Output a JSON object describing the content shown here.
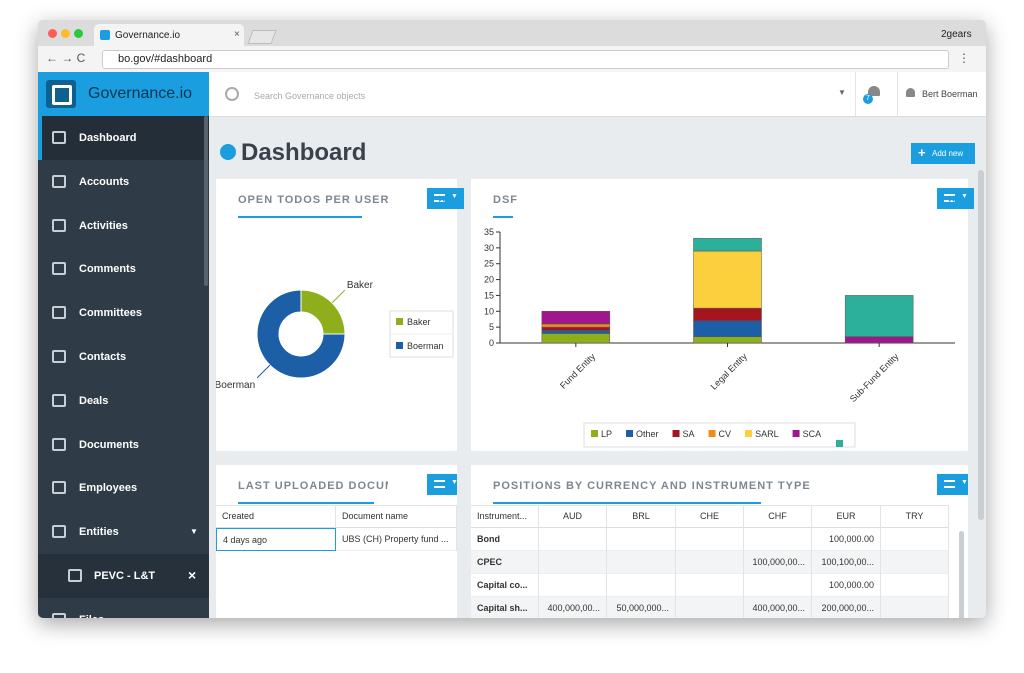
{
  "browser": {
    "tab_title": "Governance.io",
    "url": "bo.gov/#dashboard",
    "profile": "2gears"
  },
  "app": {
    "brand": "Governance.io",
    "search_placeholder": "Search Governance objects",
    "notifications": "7",
    "user": "Bert Boerman"
  },
  "sidebar": {
    "items": [
      "Dashboard",
      "Accounts",
      "Activities",
      "Comments",
      "Committees",
      "Contacts",
      "Deals",
      "Documents",
      "Employees",
      "Entities",
      "PEVC - L&T",
      "Files"
    ]
  },
  "page": {
    "title": "Dashboard",
    "add_button": "Add new"
  },
  "chart_data": [
    {
      "type": "donut",
      "title": "OPEN TODOS PER USER",
      "categories": [
        "Baker",
        "Boerman"
      ],
      "values": [
        25,
        75
      ],
      "colors": [
        "#8fae1b",
        "#1c5fa6"
      ],
      "legend": "right"
    },
    {
      "type": "stacked-bar",
      "title": "DSF",
      "categories": [
        "Fund Entity",
        "Legal Entity",
        "Sub-Fund Entity"
      ],
      "series": [
        {
          "name": "LP",
          "color": "#8fae1b",
          "values": [
            3,
            2,
            null
          ]
        },
        {
          "name": "Other",
          "color": "#1c5fa6",
          "values": [
            1,
            5,
            null
          ]
        },
        {
          "name": "SA",
          "color": "#a3161f",
          "values": [
            1,
            4,
            null
          ]
        },
        {
          "name": "CV",
          "color": "#f28b1d",
          "values": [
            1,
            null,
            null
          ]
        },
        {
          "name": "SARL",
          "color": "#fcd03d",
          "values": [
            null,
            18,
            null
          ]
        },
        {
          "name": "SCA",
          "color": "#a0178b",
          "values": [
            4,
            null,
            2
          ]
        },
        {
          "color": "#2cb09b",
          "values": [
            null,
            4,
            13
          ]
        }
      ],
      "ylim": [
        0,
        35
      ],
      "yticks": [
        0,
        5,
        10,
        15,
        20,
        25,
        30,
        35
      ],
      "grid": false,
      "legend": "bottom"
    }
  ],
  "documents_widget": {
    "title": "LAST UPLOADED DOCUMENTS",
    "columns": [
      "Created",
      "Document name"
    ],
    "rows": [
      [
        "4 days ago",
        "UBS (CH) Property fund ..."
      ]
    ]
  },
  "positions_widget": {
    "title": "POSITIONS BY CURRENCY AND INSTRUMENT TYPE",
    "columns": [
      "Instrument...",
      "AUD",
      "BRL",
      "CHE",
      "CHF",
      "EUR",
      "TRY"
    ],
    "rows": [
      [
        "Bond",
        null,
        null,
        null,
        null,
        "100,000.00",
        null
      ],
      [
        "CPEC",
        null,
        null,
        null,
        "100,000,00...",
        "100,100,00...",
        null
      ],
      [
        "Capital co...",
        null,
        null,
        null,
        null,
        "100,000.00",
        null
      ],
      [
        "Capital sh...",
        "400,000,00...",
        "50,000,000...",
        null,
        "400,000,00...",
        "200,000,00...",
        null
      ]
    ]
  }
}
